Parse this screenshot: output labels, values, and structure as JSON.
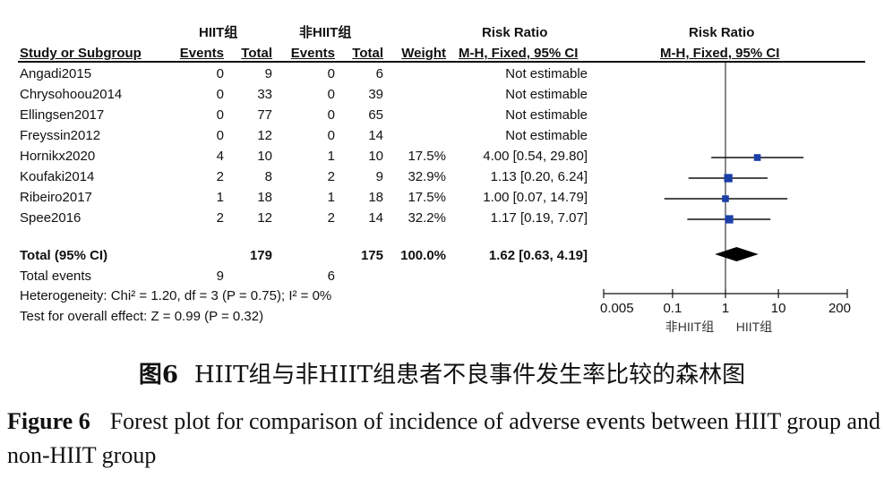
{
  "header": {
    "group1": "HIIT组",
    "group2": "非HIIT组",
    "rr_group": "Risk Ratio",
    "plot_title": "Risk Ratio",
    "cols": {
      "study": "Study or Subgroup",
      "events1": "Events",
      "total1": "Total",
      "events2": "Events",
      "total2": "Total",
      "weight": "Weight",
      "method": "M-H, Fixed, 95% CI",
      "plot_method": "M-H, Fixed, 95% CI"
    }
  },
  "rows": [
    {
      "study": "Angadi2015",
      "e1": "0",
      "t1": "9",
      "e2": "0",
      "t2": "6",
      "weight": "",
      "ci": "Not estimable"
    },
    {
      "study": "Chrysohoou2014",
      "e1": "0",
      "t1": "33",
      "e2": "0",
      "t2": "39",
      "weight": "",
      "ci": "Not estimable"
    },
    {
      "study": "Ellingsen2017",
      "e1": "0",
      "t1": "77",
      "e2": "0",
      "t2": "65",
      "weight": "",
      "ci": "Not estimable"
    },
    {
      "study": "Freyssin2012",
      "e1": "0",
      "t1": "12",
      "e2": "0",
      "t2": "14",
      "weight": "",
      "ci": "Not estimable"
    },
    {
      "study": "Hornikx2020",
      "e1": "4",
      "t1": "10",
      "e2": "1",
      "t2": "10",
      "weight": "17.5%",
      "ci": "4.00 [0.54, 29.80]"
    },
    {
      "study": "Koufaki2014",
      "e1": "2",
      "t1": "8",
      "e2": "2",
      "t2": "9",
      "weight": "32.9%",
      "ci": "1.13 [0.20, 6.24]"
    },
    {
      "study": "Ribeiro2017",
      "e1": "1",
      "t1": "18",
      "e2": "1",
      "t2": "18",
      "weight": "17.5%",
      "ci": "1.00 [0.07, 14.79]"
    },
    {
      "study": "Spee2016",
      "e1": "2",
      "t1": "12",
      "e2": "2",
      "t2": "14",
      "weight": "32.2%",
      "ci": "1.17 [0.19, 7.07]"
    }
  ],
  "total": {
    "label": "Total (95% CI)",
    "t1": "179",
    "t2": "175",
    "weight": "100.0%",
    "ci": "1.62 [0.63, 4.19]"
  },
  "total_events": {
    "label": "Total events",
    "e1": "9",
    "e2": "6"
  },
  "heterogeneity": "Heterogeneity: Chi² = 1.20, df = 3 (P = 0.75); I² = 0%",
  "overall_effect": "Test for overall effect: Z = 0.99 (P = 0.32)",
  "axis_favours": {
    "left": "非HIIT组",
    "right": "HIIT组"
  },
  "caption": {
    "cn_label": "图6",
    "cn_text": "HIIT组与非HIIT组患者不良事件发生率比较的森林图",
    "en_label": "Figure 6",
    "en_text": "Forest plot for comparison of incidence of adverse events between HIIT group and non-HIIT group"
  },
  "chart_data": {
    "type": "forest",
    "scale": "log",
    "xlim": [
      0.005,
      200
    ],
    "ticks": [
      0.005,
      0.1,
      1,
      10,
      200
    ],
    "tick_labels": [
      "0.005",
      "0.1",
      "1",
      "10",
      "200"
    ],
    "reference_line": 1,
    "studies": [
      {
        "name": "Hornikx2020",
        "rr": 4.0,
        "lo": 0.54,
        "hi": 29.8,
        "weight": 17.5
      },
      {
        "name": "Koufaki2014",
        "rr": 1.13,
        "lo": 0.2,
        "hi": 6.24,
        "weight": 32.9
      },
      {
        "name": "Ribeiro2017",
        "rr": 1.0,
        "lo": 0.07,
        "hi": 14.79,
        "weight": 17.5
      },
      {
        "name": "Spee2016",
        "rr": 1.17,
        "lo": 0.19,
        "hi": 7.07,
        "weight": 32.2
      }
    ],
    "pooled": {
      "rr": 1.62,
      "lo": 0.63,
      "hi": 4.19
    },
    "marker_color": "#1c3fa8",
    "line_color": "#111111"
  }
}
